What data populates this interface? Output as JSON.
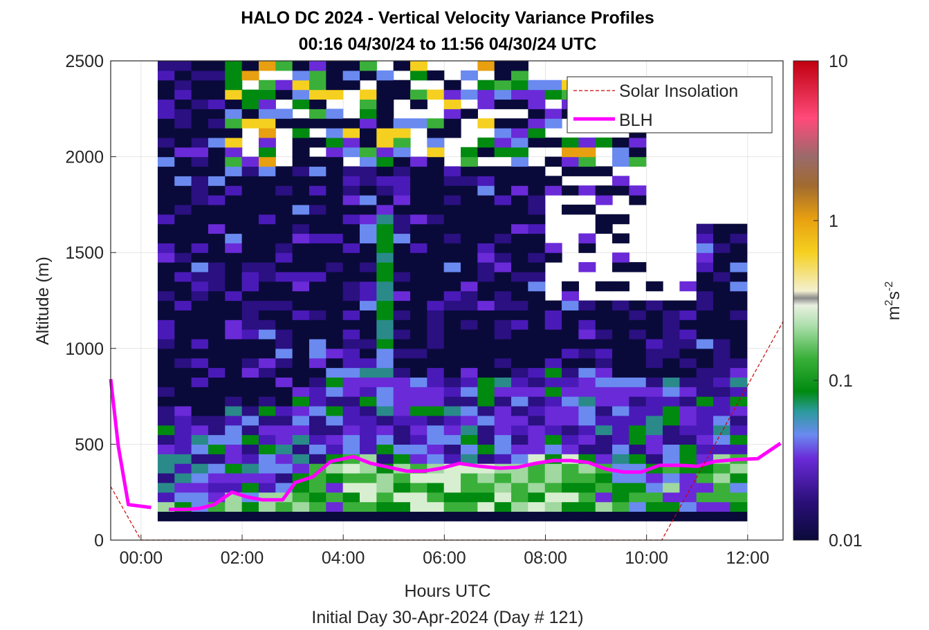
{
  "chart_data": {
    "type": "heatmap",
    "title": "HALO DC 2024 - Vertical Velocity Variance Profiles",
    "subtitle": "00:16 04/30/24 to 11:56 04/30/24  UTC",
    "xlabel": "Hours UTC",
    "xlabel2": "Initial Day 30-Apr-2024 (Day # 121)",
    "ylabel": "Altitude (m)",
    "xlim": [
      -0.6,
      12.7
    ],
    "ylim": [
      0,
      2500
    ],
    "x_ticks": [
      0,
      2,
      4,
      6,
      8,
      10,
      12
    ],
    "x_tick_labels": [
      "00:00",
      "02:00",
      "04:00",
      "06:00",
      "08:00",
      "10:00",
      "12:00"
    ],
    "y_ticks": [
      0,
      500,
      1000,
      1500,
      2000,
      2500
    ],
    "y_tick_labels": [
      "0",
      "500",
      "1000",
      "1500",
      "2000",
      "2500"
    ],
    "grid": true,
    "legend": {
      "position": "top-right",
      "entries": [
        {
          "label": "Solar Insolation",
          "color": "#cc0000",
          "style": "dashed"
        },
        {
          "label": "BLH",
          "color": "#ff00ff",
          "style": "solid"
        }
      ]
    },
    "colorbar": {
      "label_base": "m",
      "label_exp1": "2",
      "label_mid": "s",
      "label_exp2": "-2",
      "scale": "log",
      "range": [
        0.01,
        10
      ],
      "tick_values": [
        0.01,
        0.1,
        1,
        10
      ],
      "tick_labels": [
        "0.01",
        "0.1",
        "1",
        "10"
      ]
    },
    "heatmap": {
      "x_start_hours": 0.33,
      "x_end_hours": 12.0,
      "time_step_hours": 0.333,
      "altitude_step_m": 50,
      "altitude_start_m": 100,
      "altitude_end_m": 2500
    },
    "series": [
      {
        "name": "BLH",
        "x": [
          0.55,
          0.9,
          1.15,
          1.45,
          1.8,
          2.1,
          2.4,
          2.8,
          3.05,
          3.4,
          3.75,
          4.2,
          4.55,
          4.9,
          5.25,
          5.6,
          5.95,
          6.3,
          6.7,
          7.1,
          7.45,
          7.8,
          8.15,
          8.5,
          8.85,
          9.2,
          9.55,
          9.9,
          10.25,
          10.65,
          11.0,
          11.35,
          11.75,
          12.2,
          12.65
        ],
        "y": [
          160,
          160,
          165,
          185,
          250,
          225,
          210,
          210,
          300,
          330,
          410,
          435,
          400,
          380,
          360,
          360,
          375,
          400,
          385,
          375,
          380,
          400,
          415,
          415,
          405,
          370,
          355,
          355,
          390,
          390,
          385,
          410,
          420,
          425,
          505
        ]
      },
      {
        "name": "BLH-early",
        "x": [
          -0.6,
          -0.45,
          -0.25,
          0.2
        ],
        "y": [
          840,
          490,
          185,
          170
        ]
      },
      {
        "name": "Solar Insolation",
        "x": [
          -0.6,
          0.0,
          10.3,
          12.7
        ],
        "y": [
          280,
          0,
          0,
          1140
        ]
      }
    ]
  }
}
